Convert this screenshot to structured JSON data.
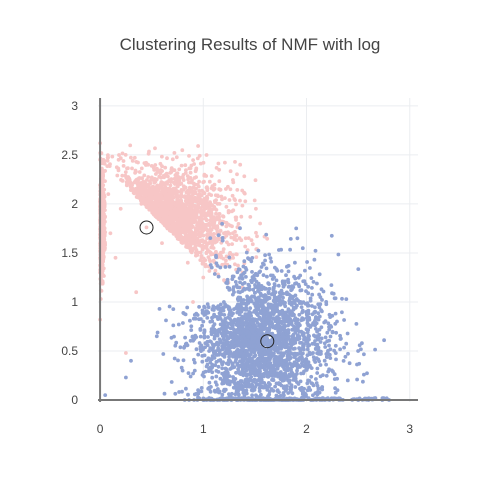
{
  "chart_data": {
    "type": "scatter",
    "title": "Clustering Results of NMF with log",
    "xlabel": "",
    "ylabel": "",
    "xlim": [
      -0.02,
      3.08
    ],
    "ylim": [
      -0.02,
      3.08
    ],
    "xticks": [
      0,
      1,
      2,
      3
    ],
    "yticks": [
      0,
      0.5,
      1,
      1.5,
      2,
      2.5,
      3
    ],
    "x_tick_labels": [
      "0",
      "1",
      "2",
      "3"
    ],
    "y_tick_labels": [
      "0",
      "0.5",
      "1",
      "1.5",
      "2",
      "2.5",
      "3"
    ],
    "grid": true,
    "legend": "none",
    "colors": {
      "cluster_1": "#f7c6c6",
      "cluster_2": "#8fa2d3",
      "centroid_stroke": "#222222"
    },
    "series": [
      {
        "color": "#f7c6c6",
        "approx_points": 2400,
        "sample_points": [
          [
            0.0,
            2.62
          ],
          [
            0.0,
            2.45
          ],
          [
            0.0,
            0.82
          ],
          [
            0.0,
            1.3
          ],
          [
            0.08,
            2.1
          ],
          [
            0.2,
            1.95
          ],
          [
            0.3,
            2.2
          ],
          [
            0.45,
            1.76
          ],
          [
            0.6,
            1.6
          ],
          [
            0.72,
            2.52
          ],
          [
            0.55,
            2.25
          ],
          [
            0.85,
            1.4
          ],
          [
            1.0,
            1.25
          ],
          [
            1.1,
            1.55
          ],
          [
            1.3,
            2.05
          ],
          [
            1.55,
            1.8
          ],
          [
            0.25,
            0.48
          ],
          [
            0.35,
            1.1
          ],
          [
            0.9,
            1.0
          ],
          [
            0.15,
            1.45
          ],
          [
            0.4,
            2.0
          ],
          [
            0.65,
            1.9
          ],
          [
            1.2,
            1.7
          ],
          [
            0.1,
            1.7
          ]
        ]
      },
      {
        "color": "#8fa2d3",
        "approx_points": 2600,
        "sample_points": [
          [
            0.25,
            0.23
          ],
          [
            0.3,
            0.4
          ],
          [
            0.55,
            0.65
          ],
          [
            0.8,
            0.3
          ],
          [
            1.0,
            0.8
          ],
          [
            1.2,
            1.0
          ],
          [
            1.4,
            1.3
          ],
          [
            1.62,
            0.6
          ],
          [
            1.8,
            0.4
          ],
          [
            1.9,
            1.75
          ],
          [
            2.0,
            0.9
          ],
          [
            2.2,
            0.6
          ],
          [
            2.4,
            0.2
          ],
          [
            2.5,
            0.5
          ],
          [
            2.6,
            0.0
          ],
          [
            2.8,
            0.0
          ],
          [
            1.5,
            0.0
          ],
          [
            0.05,
            0.05
          ],
          [
            1.3,
            0.2
          ],
          [
            2.3,
            0.1
          ],
          [
            1.7,
            1.1
          ],
          [
            1.1,
            0.5
          ],
          [
            0.95,
            0.1
          ]
        ]
      }
    ],
    "centroids": [
      [
        0.45,
        1.76
      ],
      [
        1.62,
        0.6
      ]
    ]
  }
}
